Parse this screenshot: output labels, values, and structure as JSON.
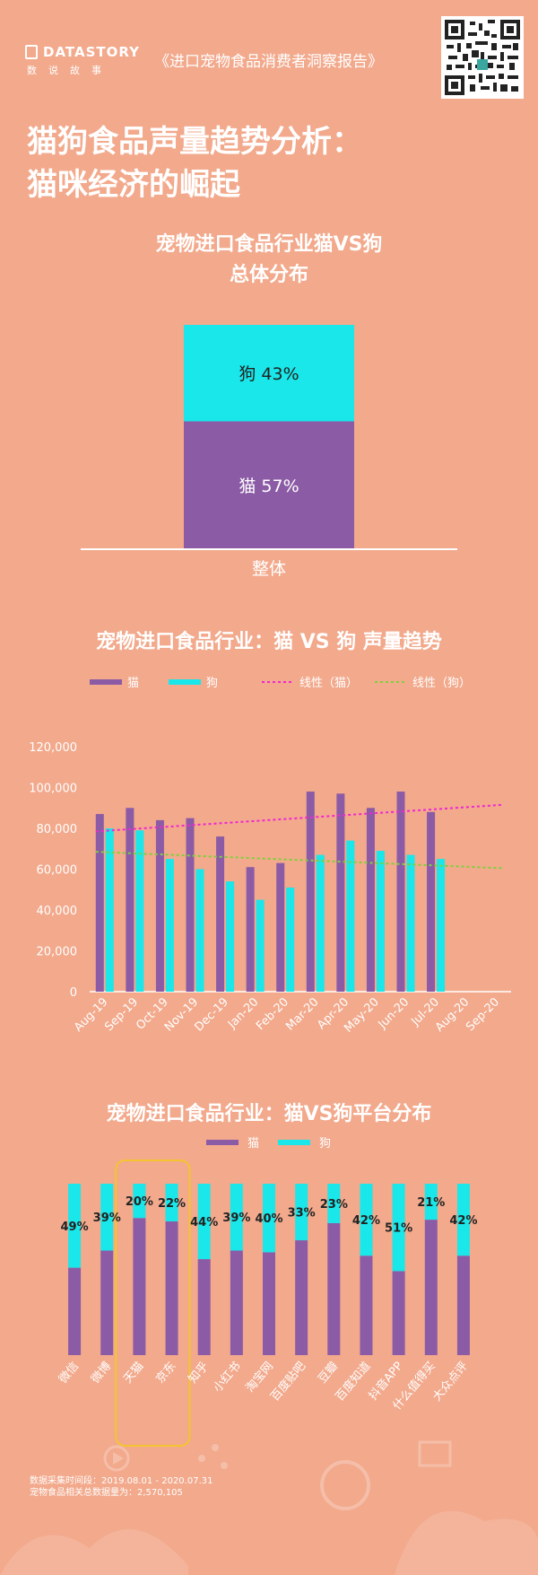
{
  "header": {
    "brand_name": "DATASTORY",
    "brand_sub": "数说故事",
    "report_title": "《进口宠物食品消费者洞察报告》"
  },
  "main_title_line1": "猫狗食品声量趋势分析：",
  "main_title_line2": "猫咪经济的崛起",
  "chart1_title_line1": "宠物进口食品行业猫VS狗",
  "chart1_title_line2": "总体分布",
  "chart2_title": "宠物进口食品行业：猫 VS 狗 声量趋势",
  "chart3_title": "宠物进口食品行业：猫VS狗平台分布",
  "footnote_line1": "数据采集时间段：2019.08.01 - 2020.07.31",
  "footnote_line2": "宠物食品相关总数据量为：2,570,105",
  "colors": {
    "cat": "#8c5ba5",
    "dog": "#19e7ea",
    "cat_trend": "#ee28d2",
    "dog_trend": "#7fd13c",
    "background": "#f2a98c",
    "highlight": "#f4c530"
  },
  "chart_data": [
    {
      "type": "bar",
      "stacked": true,
      "categories": [
        "整体"
      ],
      "series": [
        {
          "name": "猫",
          "values": [
            57
          ],
          "label": "猫  57%"
        },
        {
          "name": "狗",
          "values": [
            43
          ],
          "label": "狗  43%"
        }
      ],
      "ylim": [
        0,
        100
      ]
    },
    {
      "type": "bar",
      "categories": [
        "Aug-19",
        "Sep-19",
        "Oct-19",
        "Nov-19",
        "Dec-19",
        "Jan-20",
        "Feb-20",
        "Mar-20",
        "Apr-20",
        "May-20",
        "Jun-20",
        "Jul-20",
        "Aug-20",
        "Sep-20"
      ],
      "series": [
        {
          "name": "猫",
          "values": [
            87000,
            90000,
            84000,
            85000,
            76000,
            61000,
            63000,
            98000,
            97000,
            90000,
            98000,
            88000,
            null,
            null
          ]
        },
        {
          "name": "狗",
          "values": [
            80000,
            79000,
            65000,
            60000,
            54000,
            45000,
            51000,
            67000,
            74000,
            69000,
            67000,
            65000,
            null,
            null
          ]
        }
      ],
      "trendlines": [
        {
          "name": "线性（猫）",
          "start": 78500,
          "end": 91500
        },
        {
          "name": "线性（狗）",
          "start": 68500,
          "end": 60500
        }
      ],
      "yticks": [
        "0",
        "20,000",
        "40,000",
        "60,000",
        "80,000",
        "100,000",
        "120,000"
      ],
      "ylim": [
        0,
        120000
      ],
      "legend": "top"
    },
    {
      "type": "bar",
      "stacked": true,
      "percent": true,
      "categories": [
        "微信",
        "微博",
        "天猫",
        "京东",
        "知乎",
        "小红书",
        "淘宝网",
        "百度贴吧",
        "豆瓣",
        "百度知道",
        "抖音APP",
        "什么值得买",
        "大众点评"
      ],
      "series": [
        {
          "name": "猫",
          "values": [
            51,
            61,
            80,
            78,
            56,
            61,
            60,
            67,
            77,
            58,
            49,
            79,
            58
          ]
        },
        {
          "name": "狗",
          "values": [
            49,
            39,
            20,
            22,
            44,
            39,
            40,
            33,
            23,
            42,
            51,
            21,
            42
          ]
        }
      ],
      "dog_labels": [
        "49%",
        "39%",
        "20%",
        "22%",
        "44%",
        "39%",
        "40%",
        "33%",
        "23%",
        "42%",
        "51%",
        "21%",
        "42%"
      ],
      "ylim": [
        0,
        100
      ],
      "highlight": [
        "天猫",
        "京东"
      ],
      "legend": "top"
    }
  ]
}
